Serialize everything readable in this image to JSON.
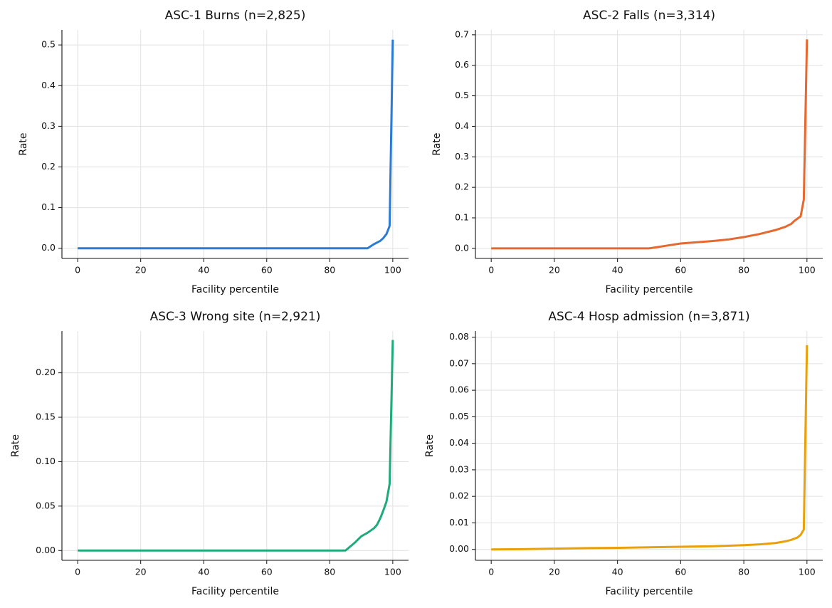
{
  "chart_data": [
    {
      "type": "line",
      "title": "ASC-1 Burns (n=2,825)",
      "x_label": "Facility percentile",
      "y_label": "Rate",
      "color": "#2b7bd6",
      "grid": true,
      "x": [
        0,
        10,
        20,
        30,
        40,
        50,
        60,
        70,
        80,
        90,
        92,
        94,
        96,
        97,
        98,
        99,
        100
      ],
      "values": [
        0,
        0,
        0,
        0,
        0,
        0,
        0,
        0,
        0,
        0,
        0,
        0.01,
        0.018,
        0.025,
        0.035,
        0.055,
        0.513
      ],
      "xlim": [
        -5,
        105
      ],
      "xticks": [
        0,
        20,
        40,
        60,
        80,
        100
      ],
      "ylim": [
        -0.025,
        0.537
      ],
      "yticks": [
        {
          "value": 0,
          "label": "0.0"
        },
        0.1,
        0.2,
        0.3,
        0.4,
        0.5
      ]
    },
    {
      "type": "line",
      "title": "ASC-2 Falls (n=3,314)",
      "x_label": "Facility percentile",
      "y_label": "Rate",
      "color": "#e5682f",
      "grid": true,
      "x": [
        0,
        10,
        20,
        30,
        40,
        50,
        55,
        60,
        70,
        75,
        80,
        85,
        90,
        93,
        95,
        96,
        98,
        99,
        100
      ],
      "values": [
        0,
        0,
        0,
        0,
        0,
        0,
        0.008,
        0.016,
        0.024,
        0.029,
        0.037,
        0.047,
        0.06,
        0.07,
        0.08,
        0.09,
        0.105,
        0.16,
        0.685
      ],
      "xlim": [
        -5,
        105
      ],
      "xticks": [
        0,
        20,
        40,
        60,
        80,
        100
      ],
      "ylim": [
        -0.033,
        0.716
      ],
      "yticks": [
        {
          "value": 0,
          "label": "0.0"
        },
        0.1,
        0.2,
        0.3,
        0.4,
        0.5,
        0.6,
        0.7
      ]
    },
    {
      "type": "line",
      "title": "ASC-3 Wrong site (n=2,921)",
      "x_label": "Facility percentile",
      "y_label": "Rate",
      "color": "#1faa7a",
      "grid": true,
      "x": [
        0,
        10,
        20,
        30,
        40,
        50,
        60,
        70,
        80,
        85,
        88,
        90,
        92,
        94,
        95,
        96,
        97,
        98,
        99,
        100
      ],
      "values": [
        0,
        0,
        0,
        0,
        0,
        0,
        0,
        0,
        0,
        0,
        0.009,
        0.016,
        0.02,
        0.025,
        0.029,
        0.036,
        0.045,
        0.055,
        0.075,
        0.237
      ],
      "xlim": [
        -5,
        105
      ],
      "xticks": [
        0,
        20,
        40,
        60,
        80,
        100
      ],
      "ylim": [
        -0.011,
        0.247
      ],
      "yticks": [
        {
          "value": 0,
          "label": "0.00"
        },
        0.05,
        {
          "value": 0.1,
          "label": "0.10"
        },
        0.15,
        {
          "value": 0.2,
          "label": "0.20"
        }
      ]
    },
    {
      "type": "line",
      "title": "ASC-4 Hosp admission (n=3,871)",
      "x_label": "Facility percentile",
      "y_label": "Rate",
      "color": "#e8a00b",
      "grid": true,
      "x": [
        0,
        10,
        20,
        30,
        40,
        50,
        60,
        70,
        80,
        85,
        90,
        93,
        95,
        97,
        98,
        99,
        100
      ],
      "values": [
        0,
        0.0001,
        0.0003,
        0.0005,
        0.0006,
        0.0008,
        0.001,
        0.0012,
        0.0016,
        0.0019,
        0.0024,
        0.003,
        0.0036,
        0.0045,
        0.0055,
        0.0075,
        0.077
      ],
      "xlim": [
        -5,
        105
      ],
      "xticks": [
        0,
        20,
        40,
        60,
        80,
        100
      ],
      "ylim": [
        -0.0041,
        0.0823
      ],
      "yticks": [
        {
          "value": 0,
          "label": "0.00"
        },
        0.01,
        0.02,
        0.03,
        0.04,
        0.05,
        0.06,
        0.07,
        0.08
      ]
    }
  ]
}
